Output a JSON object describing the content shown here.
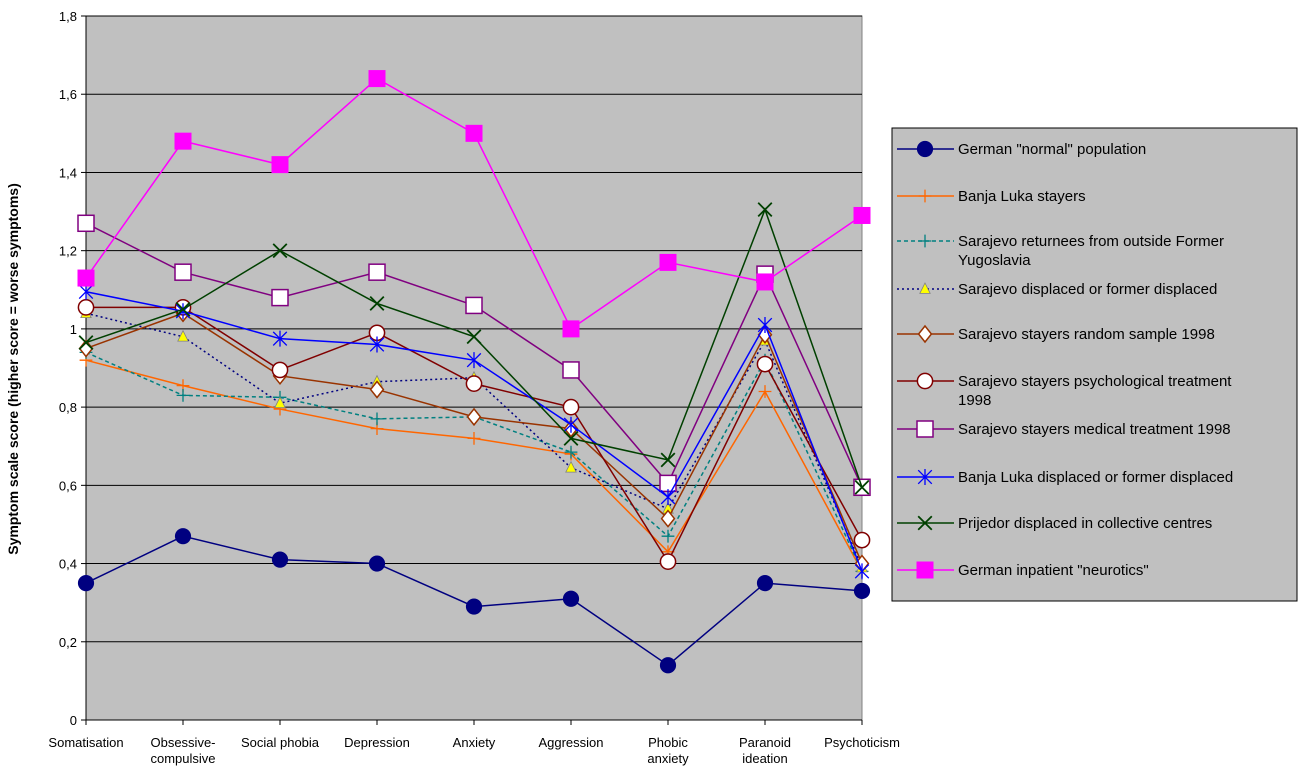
{
  "chart_data": {
    "type": "line",
    "ylabel": "Symptom scale score (higher score = worse symptoms)",
    "xlabel": "",
    "ylim": [
      0,
      1.8
    ],
    "ytick_step": 0.2,
    "ytick_labels": [
      "0",
      "0,2",
      "0,4",
      "0,6",
      "0,8",
      "1",
      "1,2",
      "1,4",
      "1,6",
      "1,8"
    ],
    "grid": true,
    "plot_background": "#c0c0c0",
    "legend_position": "right",
    "categories": [
      [
        "Somatisation"
      ],
      [
        "Obsessive-",
        "compulsive"
      ],
      [
        "Social phobia"
      ],
      [
        "Depression"
      ],
      [
        "Anxiety"
      ],
      [
        "Aggression"
      ],
      [
        "Phobic",
        "anxiety"
      ],
      [
        "Paranoid",
        "ideation"
      ],
      [
        "Psychoticism"
      ]
    ],
    "series": [
      {
        "name": "German \"normal\" population",
        "name_lines": [
          "German \"normal\" population"
        ],
        "color": "#000080",
        "marker": "filled-circle",
        "dash": "",
        "values": [
          0.35,
          0.47,
          0.41,
          0.4,
          0.29,
          0.31,
          0.14,
          0.35,
          0.33
        ]
      },
      {
        "name": "Banja Luka stayers",
        "name_lines": [
          "Banja Luka stayers"
        ],
        "color": "#ff6600",
        "marker": "plus",
        "dash": "",
        "values": [
          0.92,
          0.855,
          0.795,
          0.745,
          0.72,
          0.68,
          0.43,
          0.84,
          0.38
        ]
      },
      {
        "name": "Sarajevo returnees from outside Former Yugoslavia",
        "name_lines": [
          "Sarajevo returnees from outside Former",
          "Yugoslavia"
        ],
        "color": "#008080",
        "marker": "plus",
        "dash": "4,3",
        "values": [
          0.94,
          0.83,
          0.825,
          0.77,
          0.775,
          0.685,
          0.47,
          0.92,
          0.38
        ]
      },
      {
        "name": "Sarajevo displaced or former displaced",
        "name_lines": [
          "Sarajevo displaced or former displaced"
        ],
        "color": "#000080",
        "marker": "yellow-triangle",
        "dash": "2,3",
        "values": [
          1.04,
          0.98,
          0.81,
          0.865,
          0.875,
          0.645,
          0.54,
          0.97,
          0.39
        ]
      },
      {
        "name": "Sarajevo stayers random sample 1998",
        "name_lines": [
          "Sarajevo stayers random sample 1998"
        ],
        "color": "#993300",
        "marker": "diamond",
        "dash": "",
        "values": [
          0.95,
          1.04,
          0.88,
          0.845,
          0.775,
          0.745,
          0.515,
          0.985,
          0.4
        ]
      },
      {
        "name": "Sarajevo stayers psychological treatment 1998",
        "name_lines": [
          "Sarajevo stayers psychological treatment",
          "1998"
        ],
        "color": "#800000",
        "marker": "open-circle",
        "dash": "",
        "values": [
          1.055,
          1.055,
          0.895,
          0.99,
          0.86,
          0.8,
          0.405,
          0.91,
          0.46
        ]
      },
      {
        "name": "Sarajevo stayers medical treatment 1998",
        "name_lines": [
          "Sarajevo stayers medical treatment 1998"
        ],
        "color": "#800080",
        "marker": "open-square",
        "dash": "",
        "values": [
          1.27,
          1.145,
          1.08,
          1.145,
          1.06,
          0.895,
          0.605,
          1.14,
          0.595
        ]
      },
      {
        "name": "Banja Luka displaced or former displaced",
        "name_lines": [
          "Banja Luka displaced or former displaced"
        ],
        "color": "#0000ff",
        "marker": "asterisk",
        "dash": "",
        "values": [
          1.095,
          1.045,
          0.975,
          0.96,
          0.92,
          0.755,
          0.57,
          1.01,
          0.38
        ]
      },
      {
        "name": "Prijedor displaced in collective centres",
        "name_lines": [
          "Prijedor displaced in collective centres"
        ],
        "color": "#004000",
        "marker": "x",
        "dash": "",
        "values": [
          0.965,
          1.05,
          1.2,
          1.065,
          0.98,
          0.72,
          0.665,
          1.305,
          0.595
        ]
      },
      {
        "name": "German inpatient \"neurotics\"",
        "name_lines": [
          "German inpatient \"neurotics\""
        ],
        "color": "#ff00ff",
        "marker": "filled-square",
        "dash": "",
        "values": [
          1.13,
          1.48,
          1.42,
          1.64,
          1.5,
          1.0,
          1.17,
          1.12,
          1.29
        ]
      }
    ]
  }
}
